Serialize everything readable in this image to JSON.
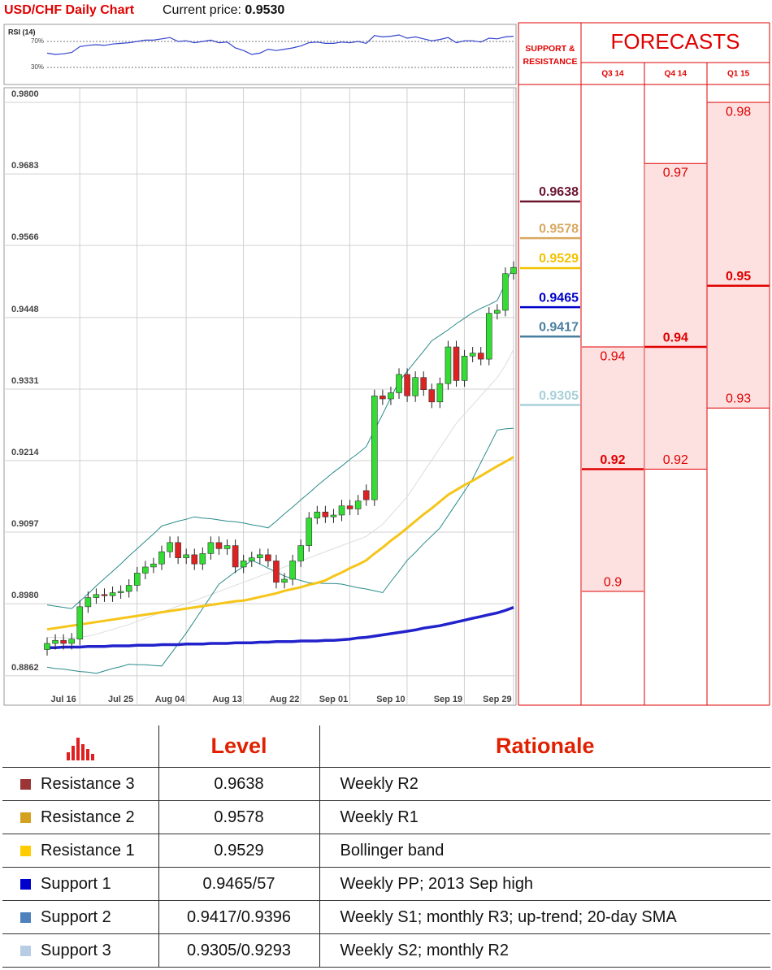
{
  "header": {
    "title": "USD/CHF Daily Chart",
    "price_label": "Current price:",
    "price": "0.9530"
  },
  "chart_data": [
    {
      "type": "line",
      "title": "RSI (14)",
      "color": "#3344cc",
      "ylim": [
        3.75,
        96.25
      ],
      "yticks": [
        {
          "value": 70,
          "label": "70%"
        },
        {
          "value": 30,
          "label": "30%"
        }
      ],
      "values": [
        52,
        50,
        51,
        53,
        62,
        64,
        65,
        64,
        66,
        67,
        68,
        70,
        72,
        72,
        74,
        76,
        70,
        71,
        68,
        70,
        72,
        68,
        69,
        60,
        56,
        50,
        52,
        58,
        56,
        58,
        60,
        63,
        68,
        69,
        67,
        67,
        69,
        68,
        70,
        67,
        79,
        77,
        78,
        80,
        75,
        77,
        74,
        71,
        73,
        76,
        68,
        71,
        71,
        69,
        75,
        74,
        77,
        78
      ]
    },
    {
      "type": "candlestick",
      "grid": true,
      "up_color": "#33dd33",
      "down_color": "#dd2222",
      "ylim": [
        0.8814,
        0.9824
      ],
      "yticks": [
        {
          "value": 0.98,
          "label": "0.9800"
        },
        0.9683,
        0.9566,
        0.9448,
        0.9331,
        0.9214,
        0.9097,
        {
          "value": 0.898,
          "label": "0.8980"
        },
        0.8862
      ],
      "categories": [
        null,
        null,
        "Jul 16",
        null,
        null,
        null,
        null,
        null,
        null,
        "Jul 25",
        null,
        null,
        null,
        null,
        null,
        "Aug 04",
        null,
        null,
        null,
        null,
        null,
        null,
        "Aug 13",
        null,
        null,
        null,
        null,
        null,
        null,
        "Aug 22",
        null,
        null,
        null,
        null,
        null,
        "Sep 01",
        null,
        null,
        null,
        null,
        null,
        null,
        "Sep 10",
        null,
        null,
        null,
        null,
        null,
        null,
        "Sep 19",
        null,
        null,
        null,
        null,
        null,
        "Sep 29",
        null,
        null
      ],
      "open": [
        0.8905,
        0.8915,
        0.892,
        0.8915,
        0.8922,
        0.8975,
        0.899,
        0.8995,
        0.8993,
        0.8998,
        0.9,
        0.901,
        0.903,
        0.904,
        0.9045,
        0.9065,
        0.908,
        0.9055,
        0.906,
        0.9045,
        0.9062,
        0.908,
        0.907,
        0.9075,
        0.904,
        0.905,
        0.9055,
        0.906,
        0.905,
        0.9015,
        0.902,
        0.905,
        0.9075,
        0.912,
        0.913,
        0.9122,
        0.9125,
        0.914,
        0.9135,
        0.9165,
        0.915,
        0.932,
        0.9315,
        0.9325,
        0.9355,
        0.932,
        0.935,
        0.933,
        0.931,
        0.934,
        0.94,
        0.9345,
        0.9385,
        0.939,
        0.938,
        0.9455,
        0.946,
        0.952
      ],
      "high": [
        0.8925,
        0.893,
        0.893,
        0.8932,
        0.8985,
        0.9,
        0.9005,
        0.9005,
        0.9008,
        0.901,
        0.902,
        0.904,
        0.905,
        0.9055,
        0.9075,
        0.909,
        0.909,
        0.907,
        0.907,
        0.9072,
        0.909,
        0.909,
        0.9085,
        0.9085,
        0.906,
        0.9065,
        0.907,
        0.907,
        0.906,
        0.903,
        0.906,
        0.9085,
        0.913,
        0.914,
        0.914,
        0.9135,
        0.915,
        0.915,
        0.9158,
        0.9175,
        0.933,
        0.933,
        0.9335,
        0.9365,
        0.9365,
        0.936,
        0.936,
        0.934,
        0.935,
        0.941,
        0.941,
        0.9395,
        0.94,
        0.94,
        0.9465,
        0.947,
        0.953,
        0.954
      ],
      "low": [
        0.8895,
        0.8905,
        0.8905,
        0.8905,
        0.8912,
        0.8965,
        0.898,
        0.8983,
        0.8983,
        0.8988,
        0.899,
        0.9,
        0.902,
        0.903,
        0.9035,
        0.9055,
        0.9045,
        0.9045,
        0.9035,
        0.9035,
        0.9052,
        0.906,
        0.906,
        0.903,
        0.903,
        0.904,
        0.9045,
        0.904,
        0.9005,
        0.9005,
        0.901,
        0.904,
        0.9065,
        0.911,
        0.9112,
        0.9112,
        0.9115,
        0.9125,
        0.9125,
        0.914,
        0.914,
        0.9305,
        0.9305,
        0.9315,
        0.931,
        0.931,
        0.932,
        0.93,
        0.93,
        0.933,
        0.9335,
        0.9335,
        0.9375,
        0.937,
        0.937,
        0.9445,
        0.945,
        0.951
      ],
      "close": [
        0.8915,
        0.892,
        0.8915,
        0.8922,
        0.8975,
        0.899,
        0.8995,
        0.8993,
        0.8998,
        0.9,
        0.901,
        0.903,
        0.904,
        0.9045,
        0.9065,
        0.908,
        0.9055,
        0.906,
        0.9045,
        0.9062,
        0.908,
        0.907,
        0.9075,
        0.904,
        0.905,
        0.9055,
        0.906,
        0.905,
        0.9015,
        0.902,
        0.905,
        0.9075,
        0.912,
        0.913,
        0.9122,
        0.9125,
        0.914,
        0.9135,
        0.9148,
        0.915,
        0.932,
        0.9315,
        0.9325,
        0.9355,
        0.932,
        0.935,
        0.933,
        0.931,
        0.934,
        0.94,
        0.9345,
        0.9385,
        0.939,
        0.938,
        0.9455,
        0.946,
        0.952,
        0.953
      ],
      "series": [
        {
          "color": "#dddddd",
          "values": [
            0.8925,
            0.8925,
            0.8924,
            0.8924,
            0.8925,
            0.8927,
            0.893,
            0.8934,
            0.8938,
            0.8942,
            0.8946,
            0.8951,
            0.8956,
            0.8961,
            0.8966,
            0.8971,
            0.8976,
            0.898,
            0.8985,
            0.899,
            0.8995,
            0.9,
            0.9005,
            0.901,
            0.9015,
            0.902,
            0.9025,
            0.903,
            0.9035,
            0.904,
            0.9045,
            0.905,
            0.9055,
            0.906,
            0.9065,
            0.907,
            0.9075,
            0.908,
            0.9085,
            0.909,
            0.91,
            0.911,
            0.9125,
            0.914,
            0.9155,
            0.9175,
            0.9195,
            0.9215,
            0.9235,
            0.9255,
            0.9275,
            0.929,
            0.9305,
            0.932,
            0.9335,
            0.935,
            0.937,
            0.9396
          ]
        },
        {
          "color": "#2a8a8a",
          "values": [
            0.8978,
            0.8976,
            0.8974,
            0.8972,
            0.8984,
            0.8996,
            0.9009,
            0.9021,
            0.9033,
            0.9045,
            0.9058,
            0.907,
            0.9082,
            0.9094,
            0.9107,
            0.9111,
            0.9115,
            0.9118,
            0.9122,
            0.912,
            0.9119,
            0.9117,
            0.9115,
            0.9114,
            0.9112,
            0.9109,
            0.9107,
            0.9104,
            0.9115,
            0.9127,
            0.9138,
            0.915,
            0.9161,
            0.9173,
            0.9184,
            0.9195,
            0.9205,
            0.9216,
            0.9226,
            0.9237,
            0.9264,
            0.929,
            0.9317,
            0.9343,
            0.936,
            0.9377,
            0.9393,
            0.941,
            0.9419,
            0.9428,
            0.9438,
            0.9447,
            0.9456,
            0.9463,
            0.9469,
            0.9476,
            0.9504,
            0.9532
          ]
        },
        {
          "color": "#2a8a8a",
          "values": [
            0.8876,
            0.8874,
            0.8873,
            0.8871,
            0.8869,
            0.8868,
            0.8866,
            0.887,
            0.8874,
            0.8877,
            0.8881,
            0.888,
            0.888,
            0.8879,
            0.8878,
            0.8896,
            0.8914,
            0.8932,
            0.8952,
            0.8972,
            0.8992,
            0.9012,
            0.9022,
            0.9032,
            0.9041,
            0.9051,
            0.9045,
            0.9038,
            0.9032,
            0.9025,
            0.9021,
            0.9018,
            0.9014,
            0.9014,
            0.9013,
            0.9013,
            0.9012,
            0.9009,
            0.9006,
            0.9004,
            0.9001,
            0.8998,
            0.9016,
            0.9033,
            0.9051,
            0.9064,
            0.9078,
            0.9091,
            0.9104,
            0.9124,
            0.9144,
            0.9164,
            0.9184,
            0.9211,
            0.9237,
            0.9264,
            0.9266,
            0.9267
          ]
        },
        {
          "color": "#f5c518",
          "values": [
            0.8938,
            0.894,
            0.8942,
            0.8944,
            0.8946,
            0.8948,
            0.895,
            0.8952,
            0.8954,
            0.8956,
            0.8958,
            0.896,
            0.8962,
            0.8964,
            0.8966,
            0.8968,
            0.897,
            0.8972,
            0.8974,
            0.8976,
            0.8978,
            0.898,
            0.8982,
            0.8984,
            0.8985,
            0.8988,
            0.8991,
            0.8994,
            0.8997,
            0.9001,
            0.9004,
            0.9007,
            0.9011,
            0.9014,
            0.9018,
            0.9025,
            0.9031,
            0.9038,
            0.9044,
            0.9051,
            0.9062,
            0.9072,
            0.9083,
            0.9093,
            0.9104,
            0.9115,
            0.9126,
            0.9136,
            0.9147,
            0.9158,
            0.9166,
            0.9174,
            0.9181,
            0.9189,
            0.9197,
            0.9205,
            0.9212,
            0.922
          ]
        },
        {
          "color": "#2222cc",
          "values": [
            0.8908,
            0.8908,
            0.8909,
            0.8909,
            0.8909,
            0.891,
            0.891,
            0.891,
            0.8911,
            0.8911,
            0.8911,
            0.8912,
            0.8912,
            0.8912,
            0.8913,
            0.8913,
            0.8913,
            0.8914,
            0.8914,
            0.8914,
            0.8915,
            0.8915,
            0.8915,
            0.8916,
            0.8916,
            0.8916,
            0.8917,
            0.8917,
            0.8918,
            0.8918,
            0.8918,
            0.8919,
            0.8919,
            0.8919,
            0.892,
            0.892,
            0.8921,
            0.8922,
            0.8924,
            0.8925,
            0.8927,
            0.8929,
            0.8931,
            0.8933,
            0.8935,
            0.8937,
            0.894,
            0.8942,
            0.8944,
            0.8947,
            0.895,
            0.8953,
            0.8956,
            0.8959,
            0.8962,
            0.8965,
            0.8969,
            0.8974
          ]
        }
      ]
    }
  ],
  "support_resistance": {
    "title": "SUPPORT & RESISTANCE",
    "levels": [
      {
        "value": 0.9638,
        "color": "#6b1530"
      },
      {
        "value": 0.9578,
        "color": "#d8a860"
      },
      {
        "value": 0.9529,
        "color": "#f2c200"
      },
      {
        "value": 0.9465,
        "color": "#0000cc"
      },
      {
        "value": 0.9417,
        "color": "#4a7fa0"
      },
      {
        "value": 0.9305,
        "color": "#a8d0d8"
      }
    ]
  },
  "forecasts": {
    "title": "FORECASTS",
    "color": "#e00000",
    "fill": "#fde0e0",
    "periods": [
      {
        "label": "Q3 14",
        "high": 0.94,
        "median": 0.92,
        "low": 0.9
      },
      {
        "label": "Q4 14",
        "high": 0.97,
        "median": 0.94,
        "low": 0.92
      },
      {
        "label": "Q1 15",
        "high": 0.98,
        "median": 0.95,
        "low": 0.93
      }
    ]
  },
  "table": {
    "headers": [
      "Level",
      "Rationale"
    ],
    "rows": [
      {
        "color": "#9b3535",
        "name": "Resistance 3",
        "level": "0.9638",
        "rationale": "Weekly R2"
      },
      {
        "color": "#d4a020",
        "name": "Resistance 2",
        "level": "0.9578",
        "rationale": "Weekly R1"
      },
      {
        "color": "#ffcc00",
        "name": "Resistance 1",
        "level": "0.9529",
        "rationale": "Bollinger band"
      },
      {
        "color": "#0000cc",
        "name": "Support 1",
        "level": "0.9465/57",
        "rationale": "Weekly PP; 2013 Sep high"
      },
      {
        "color": "#4f81bd",
        "name": "Support 2",
        "level": "0.9417/0.9396",
        "rationale": "Weekly S1; monthly R3; up-trend; 20-day SMA"
      },
      {
        "color": "#b8cce4",
        "name": "Support 3",
        "level": "0.9305/0.9293",
        "rationale": "Weekly S2; monthly R2"
      }
    ]
  }
}
